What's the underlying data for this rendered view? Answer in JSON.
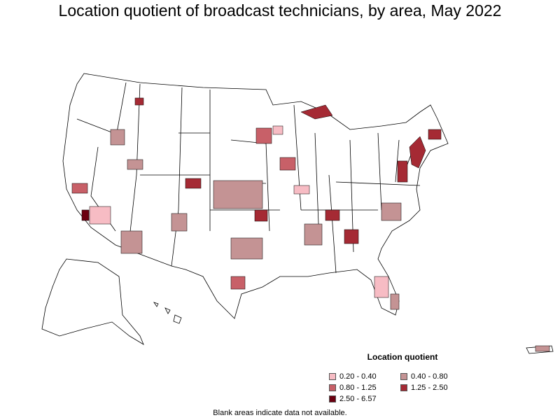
{
  "title": "Location quotient of broadcast technicians, by area, May 2022",
  "legend": {
    "title": "Location quotient",
    "items": [
      {
        "label": "0.20 - 0.40",
        "color": "#f7bcc4"
      },
      {
        "label": "0.40 - 0.80",
        "color": "#c49394"
      },
      {
        "label": "0.80 - 1.25",
        "color": "#c86068"
      },
      {
        "label": "1.25 - 2.50",
        "color": "#a52a34"
      },
      {
        "label": "2.50 - 6.57",
        "color": "#6b0010"
      }
    ]
  },
  "footnote": "Blank areas indicate data not available.",
  "colors": {
    "outline": "#000000",
    "background": "#ffffff"
  }
}
